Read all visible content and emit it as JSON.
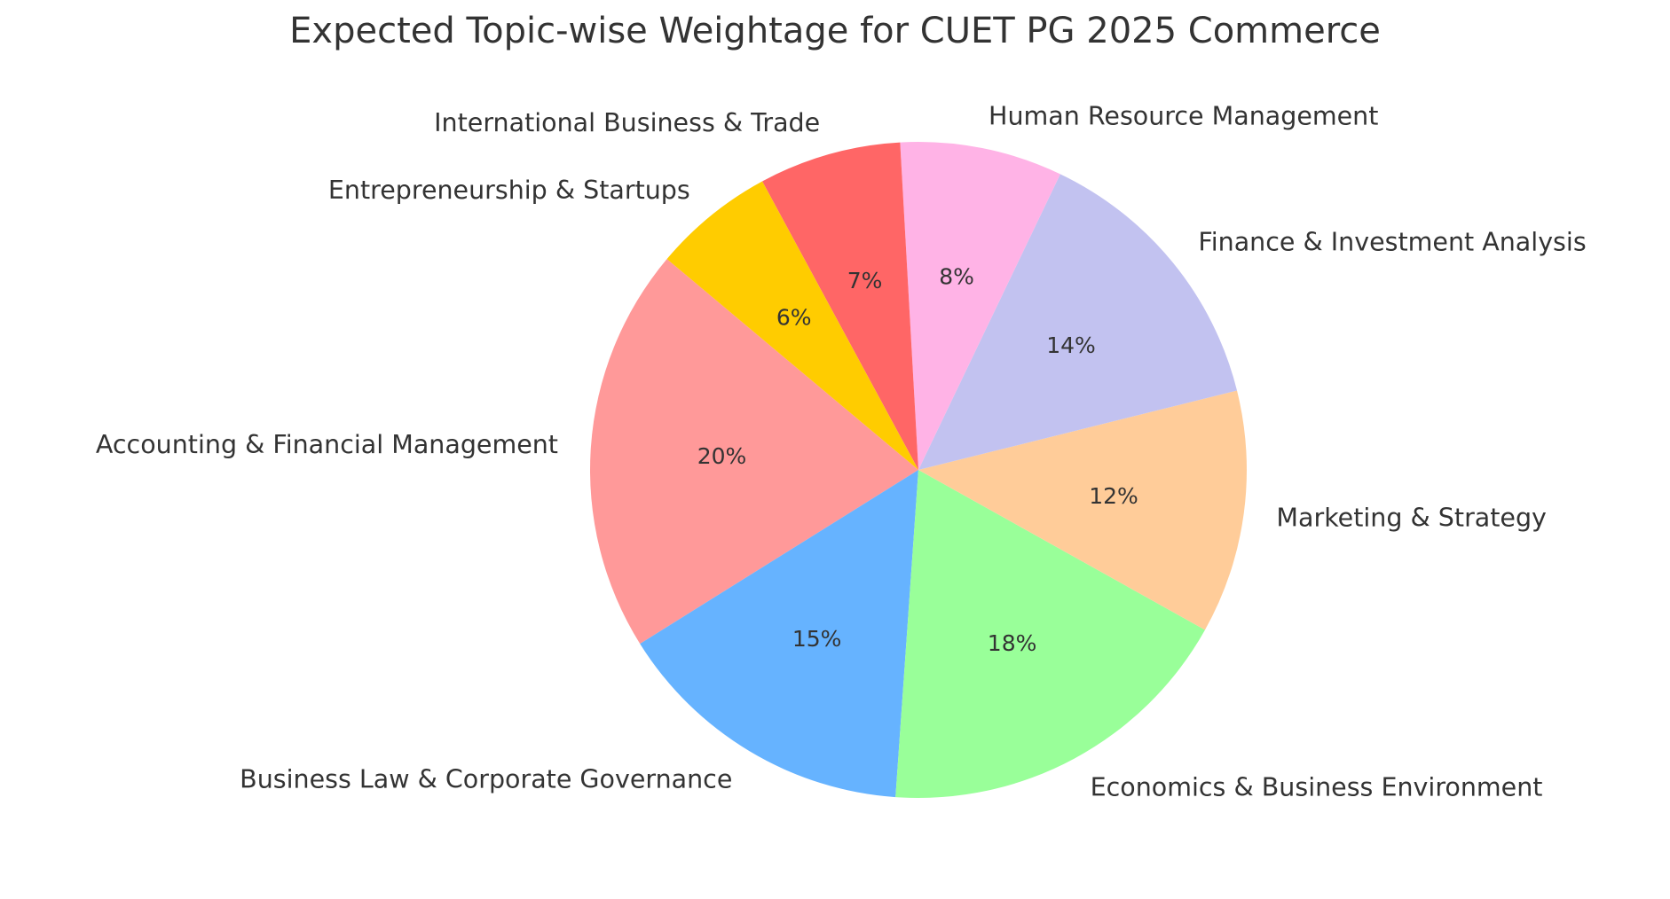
{
  "chart_data": {
    "type": "pie",
    "title": "Expected Topic-wise Weightage for CUET PG 2025 Commerce",
    "categories": [
      "Accounting & Financial Management",
      "Business Law & Corporate Governance",
      "Economics & Business Environment",
      "Marketing & Strategy",
      "Finance & Investment Analysis",
      "Human Resource Management",
      "International Business & Trade",
      "Entrepreneurship & Startups"
    ],
    "values": [
      20,
      15,
      18,
      12,
      14,
      8,
      7,
      6
    ],
    "value_labels": [
      "20%",
      "15%",
      "18%",
      "12%",
      "14%",
      "8%",
      "7%",
      "6%"
    ],
    "colors": [
      "#ff9999",
      "#66b3ff",
      "#99ff99",
      "#ffcc99",
      "#c2c2f0",
      "#ffb3e6",
      "#ff6666",
      "#ffcc00"
    ],
    "start_angle": 140,
    "legend": "none",
    "xlabel": "",
    "ylabel": ""
  }
}
